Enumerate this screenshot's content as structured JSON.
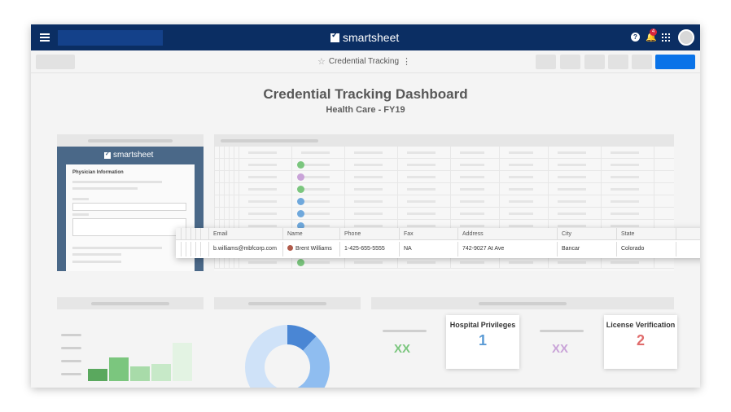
{
  "app": {
    "name": "smartsheet",
    "notification_count": "4"
  },
  "sheet": {
    "title": "Credential Tracking"
  },
  "dashboard": {
    "title": "Credential Tracking Dashboard",
    "subtitle": "Health Care - FY19"
  },
  "form_widget": {
    "logo": "smartsheet",
    "heading": "Physician Information"
  },
  "row_detail": {
    "columns": [
      "Email",
      "Name",
      "Phone",
      "Fax",
      "Address",
      "City",
      "State"
    ],
    "values": [
      "b.williams@mbfcorp.com",
      "Brent Williams",
      "1-425-655-5555",
      "NA",
      "742-9027 At Ave",
      "Bancar",
      "Colorado"
    ]
  },
  "metrics": {
    "xx1": "XX",
    "xx2": "XX",
    "hospital_title": "Hospital Privileges",
    "hospital_value": "1",
    "license_title": "License Verification",
    "license_value": "2"
  },
  "colors": {
    "topbar": "#0b2e63",
    "accent_blue": "#0a73e8",
    "green": "#7bc67e",
    "purple": "#c9a3d8",
    "value_blue": "#5b9bd5",
    "value_red": "#e06c6c"
  },
  "bar_chart": {
    "values": [
      28,
      55,
      35,
      40,
      90
    ]
  },
  "donut": {
    "segments": [
      0.12,
      0.38,
      0.5
    ]
  }
}
